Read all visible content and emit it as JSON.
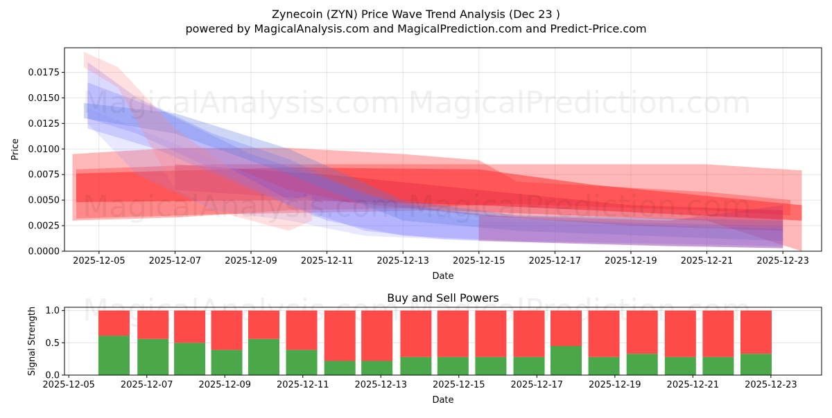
{
  "title": "Zynecoin (ZYN) Price Wave Trend Analysis (Dec 23 )",
  "subtitle": "powered by MagicalAnalysis.com and MagicalPrediction.com and Predict-Price.com",
  "watermarks": [
    "MagicalAnalysis.com",
    "MagicalPrediction.com"
  ],
  "colors": {
    "buy": "#4aa84a",
    "sell": "#ff4a4a",
    "blue_band": "#6b6bff",
    "red_band": "#ff3030"
  },
  "chart_data": [
    {
      "type": "area",
      "title": "",
      "xlabel": "Date",
      "ylabel": "Price",
      "x_unit": "day of December 2025",
      "xlim": [
        4.09,
        24.02
      ],
      "ylim": [
        0,
        0.0199
      ],
      "grid": true,
      "xticks": [
        5,
        7,
        9,
        11,
        13,
        15,
        17,
        19,
        21,
        23
      ],
      "xtick_labels": [
        "2025-12-05",
        "2025-12-07",
        "2025-12-09",
        "2025-12-11",
        "2025-12-13",
        "2025-12-15",
        "2025-12-17",
        "2025-12-19",
        "2025-12-21",
        "2025-12-23"
      ],
      "yticks": [
        0,
        0.0025,
        0.005,
        0.0075,
        0.01,
        0.0125,
        0.015,
        0.0175
      ],
      "ytick_labels": [
        "0.0000",
        "0.0025",
        "0.0050",
        "0.0075",
        "0.0100",
        "0.0125",
        "0.0150",
        "0.0175"
      ],
      "bands": [
        {
          "name": "red-wave-1",
          "color": "#ff3030",
          "opacity": 0.35,
          "points": [
            [
              4.3,
              0.003,
              0.0095
            ],
            [
              7,
              0.0033,
              0.0101
            ],
            [
              10,
              0.004,
              0.0101
            ],
            [
              13,
              0.0042,
              0.0095
            ],
            [
              15,
              0.0045,
              0.0089
            ],
            [
              16,
              0.0046,
              0.0068
            ],
            [
              21,
              0.004,
              0.0058
            ],
            [
              23.2,
              0.0035,
              0.005
            ]
          ]
        },
        {
          "name": "red-wave-2",
          "color": "#ff3030",
          "opacity": 0.35,
          "points": [
            [
              4.4,
              0.0032,
              0.008
            ],
            [
              8,
              0.0036,
              0.0085
            ],
            [
              14,
              0.004,
              0.0085
            ],
            [
              21,
              0.003,
              0.0085
            ],
            [
              23.5,
              0.0,
              0.0079
            ]
          ]
        },
        {
          "name": "red-wave-3",
          "color": "#ff3030",
          "opacity": 0.55,
          "points": [
            [
              4.4,
              0.0048,
              0.0076
            ],
            [
              10,
              0.005,
              0.0082
            ],
            [
              15,
              0.0045,
              0.008
            ],
            [
              18,
              0.004,
              0.0065
            ],
            [
              23.5,
              0.003,
              0.0045
            ]
          ]
        },
        {
          "name": "red-wave-4",
          "color": "#e02040",
          "opacity": 0.35,
          "points": [
            [
              7,
              0.006,
              0.0085
            ],
            [
              11,
              0.005,
              0.0075
            ],
            [
              15,
              0.0035,
              0.006
            ],
            [
              19,
              0.0025,
              0.0045
            ],
            [
              23,
              0.002,
              0.004
            ]
          ]
        },
        {
          "name": "blue-wave-1",
          "color": "#6b6bff",
          "opacity": 0.25,
          "points": [
            [
              4.7,
              0.013,
              0.0185
            ],
            [
              6,
              0.0115,
              0.015
            ],
            [
              8,
              0.008,
              0.0115
            ],
            [
              10,
              0.0045,
              0.009
            ],
            [
              12,
              0.002,
              0.0055
            ],
            [
              14,
              0.0012,
              0.004
            ],
            [
              17,
              0.0008,
              0.003
            ],
            [
              20,
              0.0005,
              0.0025
            ],
            [
              23,
              0.0003,
              0.0022
            ]
          ]
        },
        {
          "name": "blue-wave-2",
          "color": "#6b6bff",
          "opacity": 0.25,
          "points": [
            [
              4.7,
              0.012,
              0.0165
            ],
            [
              6.5,
              0.01,
              0.014
            ],
            [
              9,
              0.006,
              0.0095
            ],
            [
              11,
              0.003,
              0.007
            ],
            [
              13,
              0.0015,
              0.0045
            ],
            [
              16,
              0.001,
              0.0032
            ],
            [
              19,
              0.0008,
              0.0028
            ],
            [
              23,
              0.0005,
              0.0025
            ]
          ]
        },
        {
          "name": "blue-wave-3",
          "color": "#5a7adf",
          "opacity": 0.3,
          "points": [
            [
              4.6,
              0.013,
              0.0145
            ],
            [
              7,
              0.0115,
              0.0135
            ],
            [
              10,
              0.0075,
              0.01
            ],
            [
              13,
              0.003,
              0.005
            ],
            [
              16,
              0.002,
              0.0035
            ],
            [
              23,
              0.001,
              0.003
            ]
          ]
        },
        {
          "name": "blue-wave-4",
          "color": "#8a8aff",
          "opacity": 0.2,
          "points": [
            [
              4.7,
              0.0125,
              0.014
            ],
            [
              6,
              0.0075,
              0.012
            ],
            [
              8,
              0.004,
              0.009
            ],
            [
              10,
              0.003,
              0.006
            ],
            [
              12,
              0.0015,
              0.0045
            ],
            [
              15,
              0.001,
              0.003
            ],
            [
              23,
              0.0003,
              0.002
            ]
          ]
        },
        {
          "name": "pink-wave",
          "color": "#ff8080",
          "opacity": 0.25,
          "points": [
            [
              4.6,
              0.018,
              0.0195
            ],
            [
              5.5,
              0.016,
              0.018
            ],
            [
              7,
              0.006,
              0.012
            ],
            [
              8.5,
              0.0035,
              0.008
            ],
            [
              10,
              0.002,
              0.005
            ],
            [
              10.6,
              0.003,
              0.0055
            ]
          ]
        },
        {
          "name": "purple-wave",
          "color": "#c03070",
          "opacity": 0.3,
          "points": [
            [
              15,
              0.001,
              0.0035
            ],
            [
              20,
              0.0005,
              0.003
            ],
            [
              23,
              0.0003,
              0.0045
            ]
          ]
        }
      ]
    },
    {
      "type": "bar",
      "title": "Buy and Sell Powers",
      "xlabel": "Date",
      "ylabel": "Signal Strength",
      "x_unit": "day of December 2025",
      "xlim": [
        4.89,
        24.3
      ],
      "ylim": [
        0,
        1.05
      ],
      "grid": true,
      "xticks": [
        5,
        7,
        9,
        11,
        13,
        15,
        17,
        19,
        21,
        23
      ],
      "xtick_labels": [
        "2025-12-05",
        "2025-12-07",
        "2025-12-09",
        "2025-12-11",
        "2025-12-13",
        "2025-12-15",
        "2025-12-17",
        "2025-12-19",
        "2025-12-21",
        "2025-12-23"
      ],
      "yticks": [
        0,
        0.5,
        1.0
      ],
      "ytick_labels": [
        "0.0",
        "0.5",
        "1.0"
      ],
      "x": [
        6.16,
        7.16,
        8.1,
        9.05,
        10,
        10.97,
        11.95,
        12.9,
        13.9,
        14.85,
        15.82,
        16.8,
        17.75,
        18.72,
        19.7,
        20.68,
        21.65,
        22.62
      ],
      "series": [
        {
          "name": "Buy",
          "values": [
            0.61,
            0.56,
            0.5,
            0.39,
            0.56,
            0.39,
            0.22,
            0.22,
            0.28,
            0.28,
            0.28,
            0.28,
            0.45,
            0.28,
            0.33,
            0.28,
            0.28,
            0.33
          ]
        },
        {
          "name": "Sell",
          "values": [
            0.39,
            0.44,
            0.5,
            0.61,
            0.44,
            0.61,
            0.78,
            0.78,
            0.72,
            0.72,
            0.72,
            0.72,
            0.55,
            0.72,
            0.67,
            0.72,
            0.72,
            0.67
          ]
        }
      ]
    }
  ]
}
